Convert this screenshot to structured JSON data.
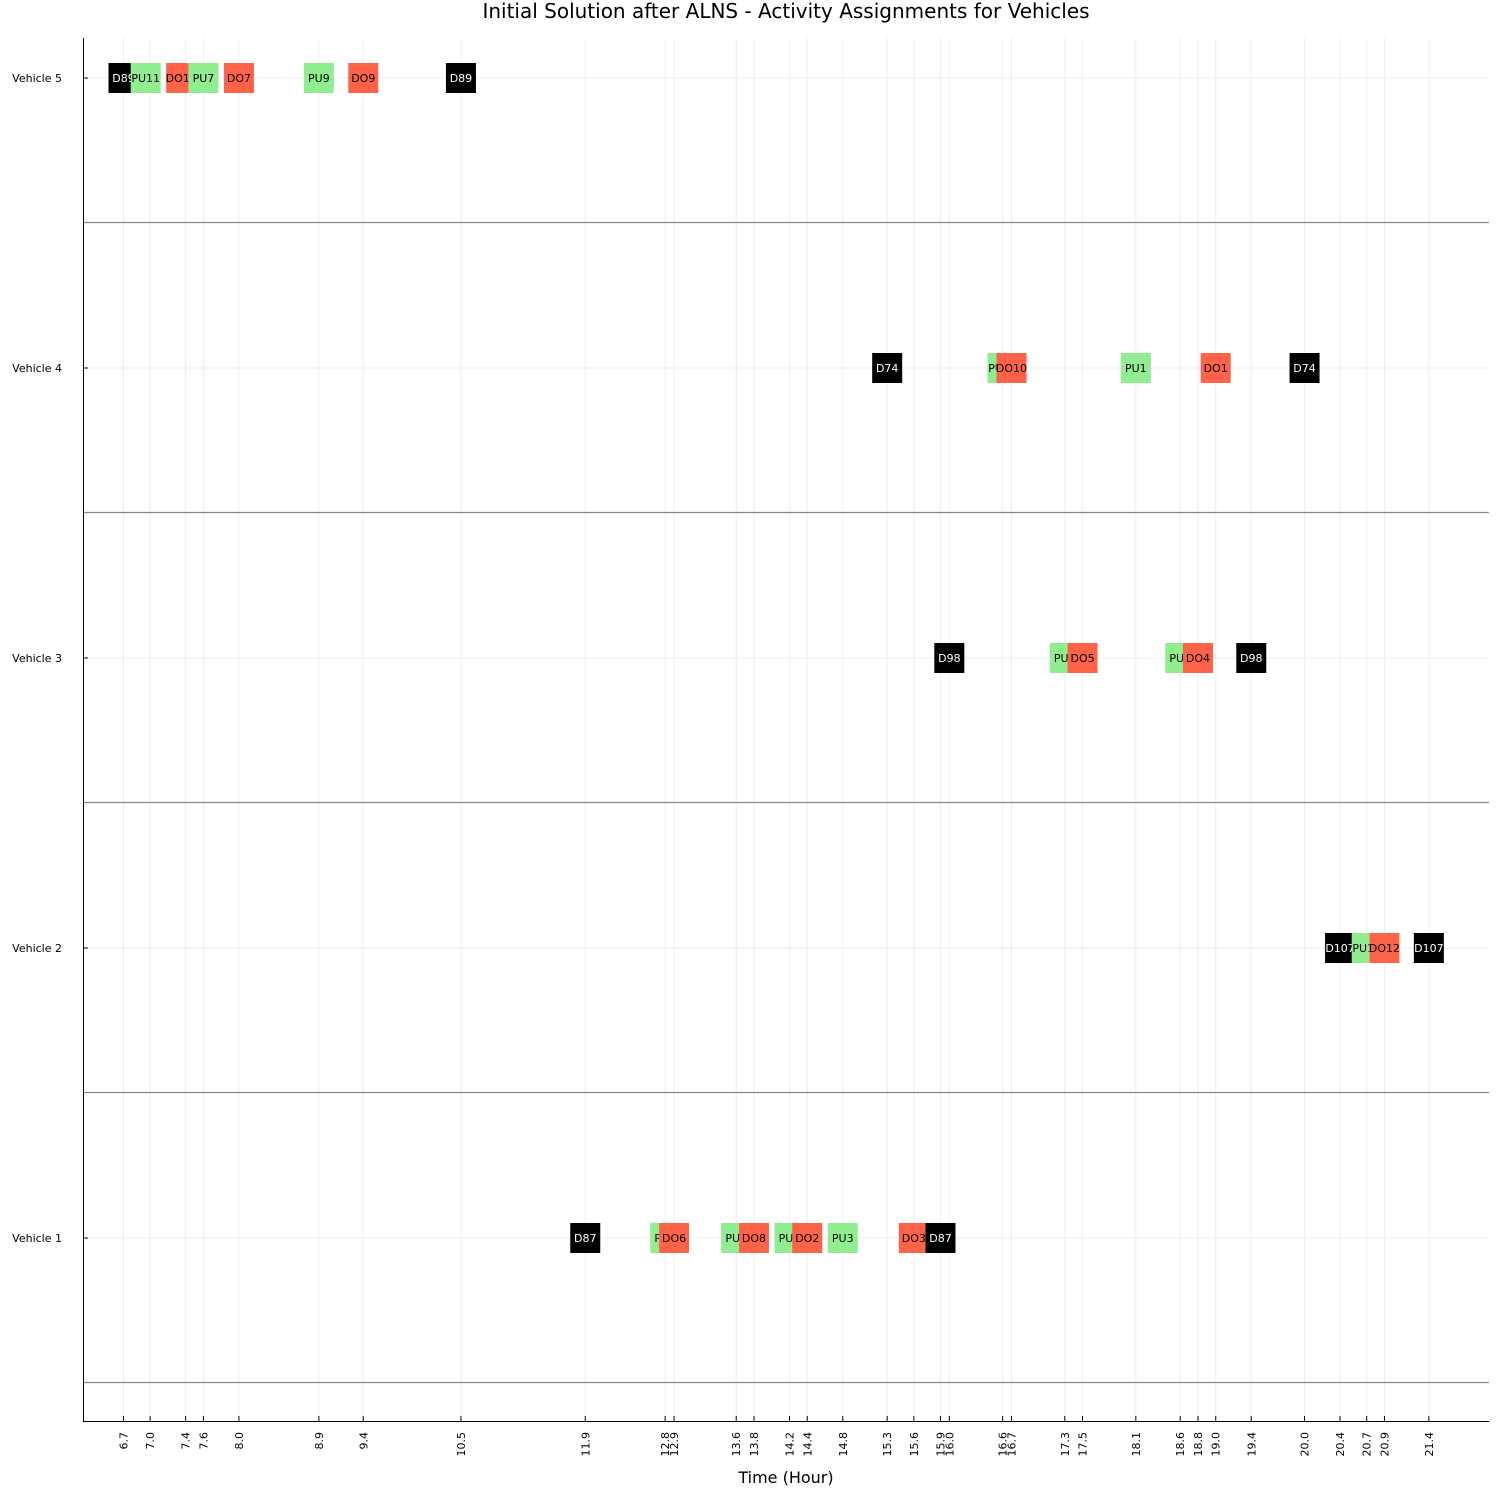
{
  "chart_data": {
    "type": "gantt",
    "title": "Initial Solution after ALNS - Activity Assignments for Vehicles",
    "xlabel": "Time (Hour)",
    "ylabel": "",
    "grid": true,
    "colors": {
      "depot": "#000000",
      "pickup": "#90EE90",
      "dropoff": "#FF6347"
    },
    "x_ticks": [
      6.7,
      7.0,
      7.4,
      7.6,
      8.0,
      8.9,
      9.4,
      10.5,
      11.9,
      12.8,
      12.9,
      13.6,
      13.8,
      14.2,
      14.4,
      14.8,
      15.3,
      15.6,
      15.9,
      16.0,
      16.6,
      16.7,
      17.3,
      17.5,
      18.1,
      18.6,
      18.8,
      19.0,
      19.4,
      20.0,
      20.4,
      20.7,
      20.9,
      21.4
    ],
    "x_tick_labels": [
      "6.7",
      "7.0",
      "7.4",
      "7.6",
      "8.0",
      "8.9",
      "9.4",
      "10.5",
      "11.9",
      "12.8",
      "12.9",
      "13.6",
      "13.8",
      "14.2",
      "14.4",
      "14.8",
      "15.3",
      "15.6",
      "15.9",
      "16.0",
      "16.6",
      "16.7",
      "17.3",
      "17.5",
      "18.1",
      "18.6",
      "18.8",
      "19.0",
      "19.4",
      "20.0",
      "20.4",
      "20.7",
      "20.9",
      "21.4"
    ],
    "vehicles": [
      {
        "label": "Vehicle 5",
        "activities": [
          {
            "label": "D89",
            "kind": "depot",
            "start": 6.7
          },
          {
            "label": "PU11",
            "kind": "pickup",
            "start": 6.95
          },
          {
            "label": "DO11",
            "kind": "dropoff",
            "start": 7.35
          },
          {
            "label": "PU7",
            "kind": "pickup",
            "start": 7.6
          },
          {
            "label": "DO7",
            "kind": "dropoff",
            "start": 8.0
          },
          {
            "label": "PU9",
            "kind": "pickup",
            "start": 8.9
          },
          {
            "label": "DO9",
            "kind": "dropoff",
            "start": 9.4
          },
          {
            "label": "D89",
            "kind": "depot",
            "start": 10.5
          }
        ]
      },
      {
        "label": "Vehicle 4",
        "activities": [
          {
            "label": "D74",
            "kind": "depot",
            "start": 15.3
          },
          {
            "label": "PU10",
            "kind": "pickup",
            "start": 16.6
          },
          {
            "label": "DO10",
            "kind": "dropoff",
            "start": 16.7
          },
          {
            "label": "PU1",
            "kind": "pickup",
            "start": 18.1
          },
          {
            "label": "DO1",
            "kind": "dropoff",
            "start": 19.0
          },
          {
            "label": "D74",
            "kind": "depot",
            "start": 20.0
          }
        ]
      },
      {
        "label": "Vehicle 3",
        "activities": [
          {
            "label": "D98",
            "kind": "depot",
            "start": 16.0
          },
          {
            "label": "PU5",
            "kind": "pickup",
            "start": 17.3
          },
          {
            "label": "DO5",
            "kind": "dropoff",
            "start": 17.5
          },
          {
            "label": "PU4",
            "kind": "pickup",
            "start": 18.6
          },
          {
            "label": "DO4",
            "kind": "dropoff",
            "start": 18.8
          },
          {
            "label": "D98",
            "kind": "depot",
            "start": 19.4
          }
        ]
      },
      {
        "label": "Vehicle 2",
        "activities": [
          {
            "label": "D107",
            "kind": "depot",
            "start": 20.4
          },
          {
            "label": "PU12",
            "kind": "pickup",
            "start": 20.7
          },
          {
            "label": "DO12",
            "kind": "dropoff",
            "start": 20.9
          },
          {
            "label": "D107",
            "kind": "depot",
            "start": 21.4
          }
        ]
      },
      {
        "label": "Vehicle 1",
        "activities": [
          {
            "label": "D87",
            "kind": "depot",
            "start": 11.9
          },
          {
            "label": "PU6",
            "kind": "pickup",
            "start": 12.8
          },
          {
            "label": "DO6",
            "kind": "dropoff",
            "start": 12.9
          },
          {
            "label": "PU8",
            "kind": "pickup",
            "start": 13.6
          },
          {
            "label": "DO8",
            "kind": "dropoff",
            "start": 13.8
          },
          {
            "label": "PU2",
            "kind": "pickup",
            "start": 14.2
          },
          {
            "label": "DO2",
            "kind": "dropoff",
            "start": 14.4
          },
          {
            "label": "PU3",
            "kind": "pickup",
            "start": 14.8
          },
          {
            "label": "DO3",
            "kind": "dropoff",
            "start": 15.6
          },
          {
            "label": "D87",
            "kind": "depot",
            "start": 15.9
          }
        ]
      }
    ]
  }
}
